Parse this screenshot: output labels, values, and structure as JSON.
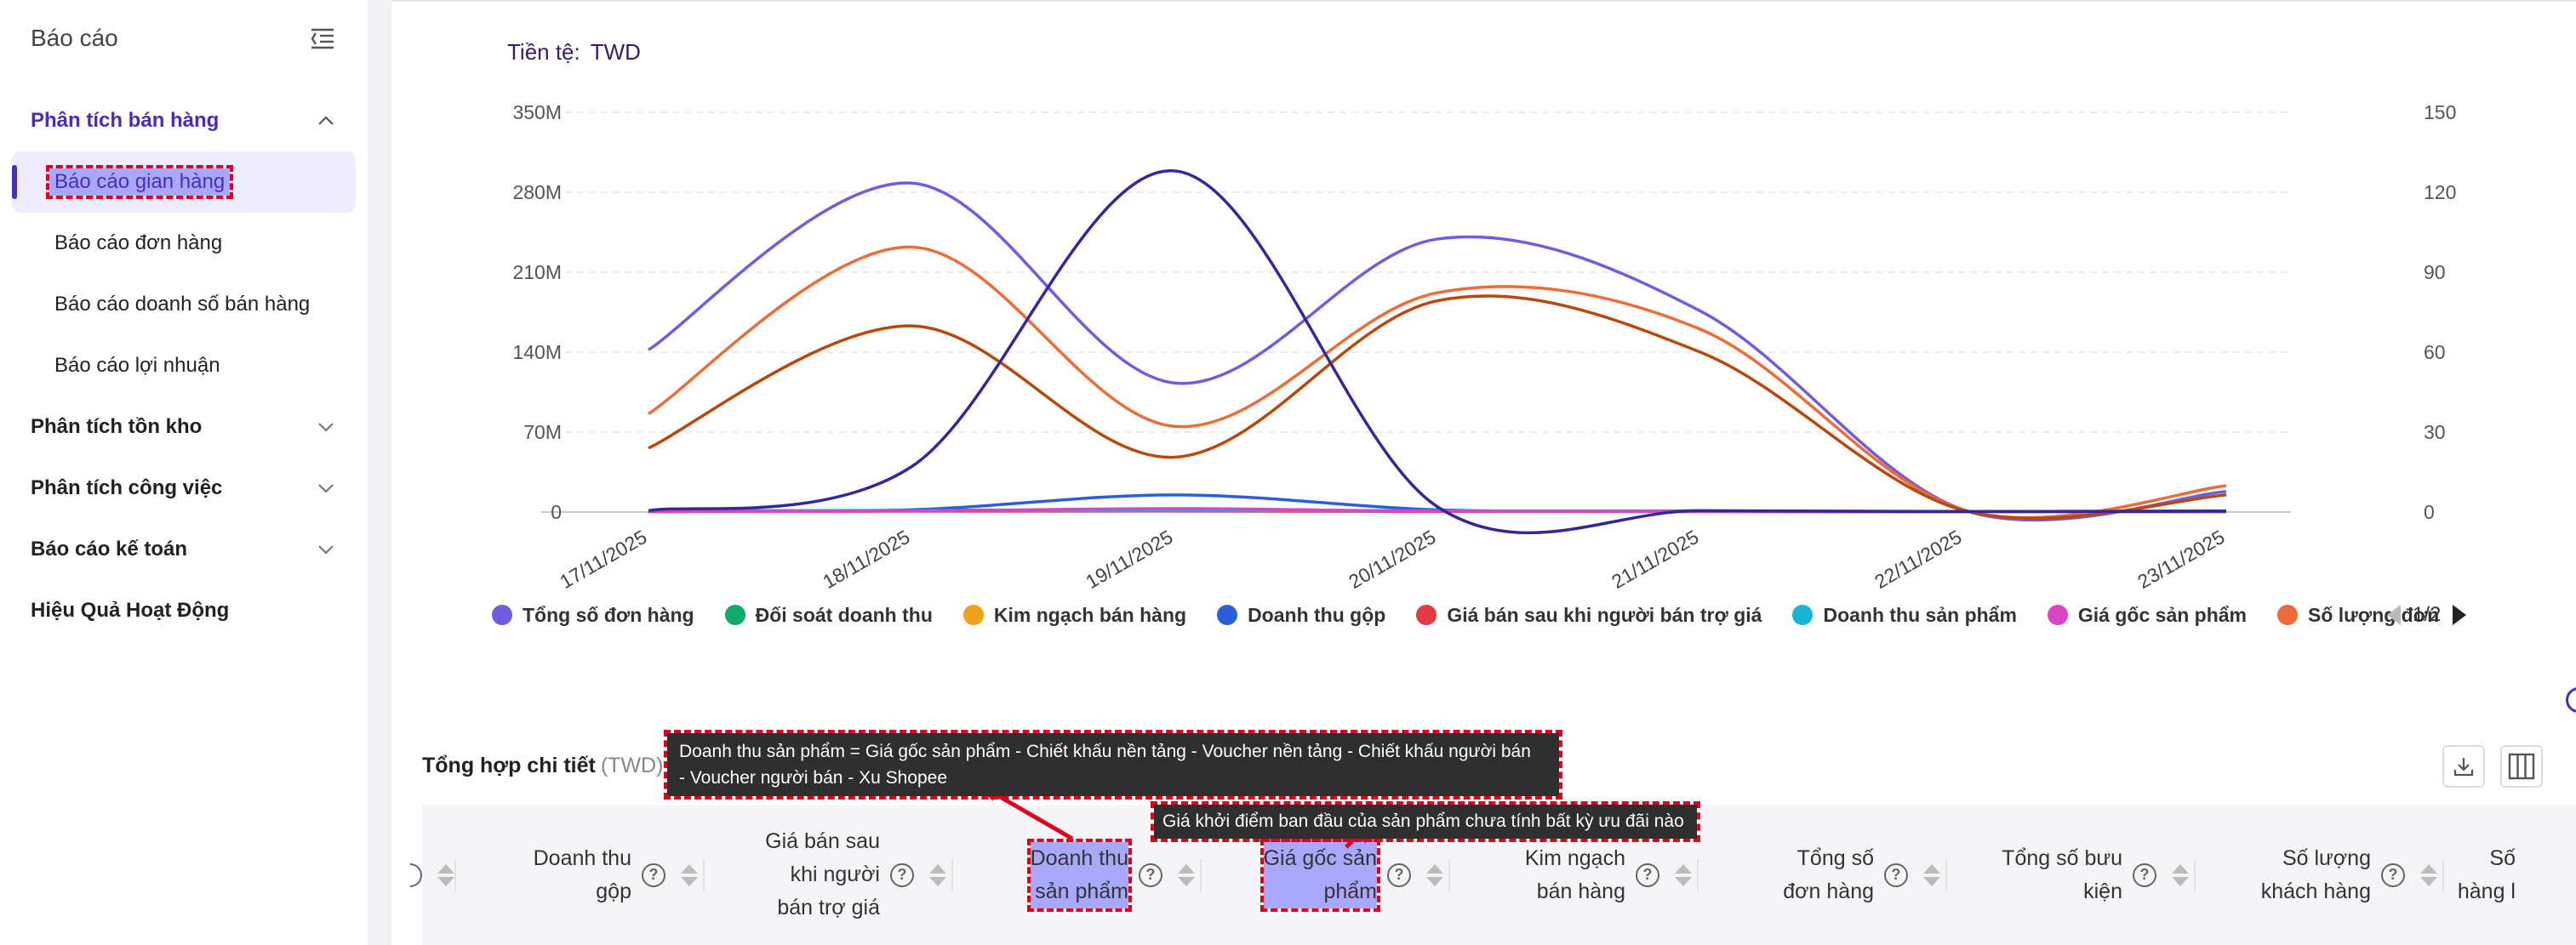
{
  "sidebar": {
    "title": "Báo cáo",
    "groups": [
      {
        "label": "Phân tích bán hàng",
        "expanded": true,
        "items": [
          "Báo cáo gian hàng",
          "Báo cáo đơn hàng",
          "Báo cáo doanh số bán hàng",
          "Báo cáo lợi nhuận"
        ]
      },
      {
        "label": "Phân tích tồn kho",
        "expanded": false
      },
      {
        "label": "Phân tích công việc",
        "expanded": false
      },
      {
        "label": "Báo cáo kế toán",
        "expanded": false
      },
      {
        "label": "Hiệu Quả Hoạt Động",
        "expanded": false
      }
    ],
    "selected_item": "Báo cáo gian hàng"
  },
  "currency": {
    "label": "Tiền tệ:",
    "value": "TWD"
  },
  "chart_data": {
    "type": "line",
    "title": "",
    "x": [
      "17/11/2025",
      "18/11/2025",
      "19/11/2025",
      "20/11/2025",
      "21/11/2025",
      "22/11/2025",
      "23/11/2025"
    ],
    "y_left": {
      "ticks": [
        "0",
        "70M",
        "140M",
        "210M",
        "280M",
        "350M"
      ],
      "range": [
        0,
        350000000
      ]
    },
    "y_right": {
      "ticks": [
        "0",
        "30",
        "60",
        "90",
        "120",
        "150"
      ],
      "range": [
        0,
        150
      ]
    },
    "grid": true,
    "legend_position": "bottom",
    "series": [
      {
        "name": "Tổng số đơn hàng",
        "color": "#6f5ce0",
        "axis": "left",
        "values": [
          142000000,
          288000000,
          113000000,
          239000000,
          176000000,
          2000000,
          18000000
        ]
      },
      {
        "name": "Đối soát doanh thu",
        "color": "#13a86e",
        "axis": "left",
        "values": [
          1000000,
          1500000,
          2000000,
          1000000,
          800000,
          300000,
          500000
        ]
      },
      {
        "name": "Kim ngạch bán hàng",
        "color": "#f0a31a",
        "axis": "left",
        "values": [
          500000,
          1000000,
          1500000,
          800000,
          600000,
          200000,
          400000
        ]
      },
      {
        "name": "Doanh thu gộp",
        "color": "#2b5fd9",
        "axis": "left",
        "values": [
          1000000,
          2000000,
          15000000,
          2000000,
          1000000,
          500000,
          1000000
        ]
      },
      {
        "name": "Giá bán sau khi người bán trợ giá",
        "color": "#e53945",
        "axis": "left",
        "values": [
          300000,
          800000,
          1000000,
          500000,
          400000,
          200000,
          300000
        ]
      },
      {
        "name": "Doanh thu sản phẩm",
        "color": "#16b5d6",
        "axis": "left",
        "values": [
          800000,
          1200000,
          1500000,
          1000000,
          700000,
          300000,
          500000
        ]
      },
      {
        "name": "Giá gốc sản phẩm",
        "color": "#d946c5",
        "axis": "left",
        "values": [
          400000,
          900000,
          3000000,
          700000,
          500000,
          200000,
          400000
        ]
      },
      {
        "name": "Số lượng đơn",
        "color": "#ee6c3a",
        "axis": "left",
        "values": [
          86000000,
          232000000,
          75000000,
          192000000,
          160000000,
          2000000,
          23000000
        ]
      },
      {
        "name": "",
        "color": "#b8480c",
        "axis": "left",
        "values": [
          56000000,
          163000000,
          48000000,
          185000000,
          140000000,
          1500000,
          15000000
        ]
      },
      {
        "name": "",
        "color": "#33289a",
        "axis": "right",
        "values": [
          0.5,
          17,
          128,
          2,
          0.5,
          0.2,
          0.3
        ]
      }
    ]
  },
  "legend_pager": "1/2",
  "section": {
    "title": "Tổng hợp chi tiết",
    "unit": "(TWD)"
  },
  "tooltips": {
    "product_revenue_line1": "Doanh thu sản phẩm = Giá gốc sản phẩm - Chiết khấu nền tảng - Voucher nền tảng - Chiết khấu người bán",
    "product_revenue_line2": "- Voucher người bán - Xu Shopee",
    "original_price": "Giá khởi điểm ban đầu của sản phẩm chưa tính bất kỳ ưu đãi nào"
  },
  "table_columns": [
    {
      "lines": [
        "Doanh thu",
        "gộp"
      ]
    },
    {
      "lines": [
        "Giá bán sau",
        "khi người",
        "bán trợ giá"
      ]
    },
    {
      "lines": [
        "Doanh thu",
        "sản phẩm"
      ],
      "highlighted": true
    },
    {
      "lines": [
        "Giá gốc sản",
        "phẩm"
      ],
      "highlighted": true
    },
    {
      "lines": [
        "Kim ngạch",
        "bán hàng"
      ]
    },
    {
      "lines": [
        "Tổng số",
        "đơn hàng"
      ]
    },
    {
      "lines": [
        "Tổng số bưu",
        "kiện"
      ]
    },
    {
      "lines": [
        "Số lượng",
        "khách hàng"
      ]
    },
    {
      "lines": [
        "Số",
        "hàng l"
      ]
    }
  ],
  "icons": {
    "collapse": "collapse-sidebar-icon",
    "download": "download-icon",
    "columns": "columns-icon",
    "help": "question-circle-icon"
  }
}
